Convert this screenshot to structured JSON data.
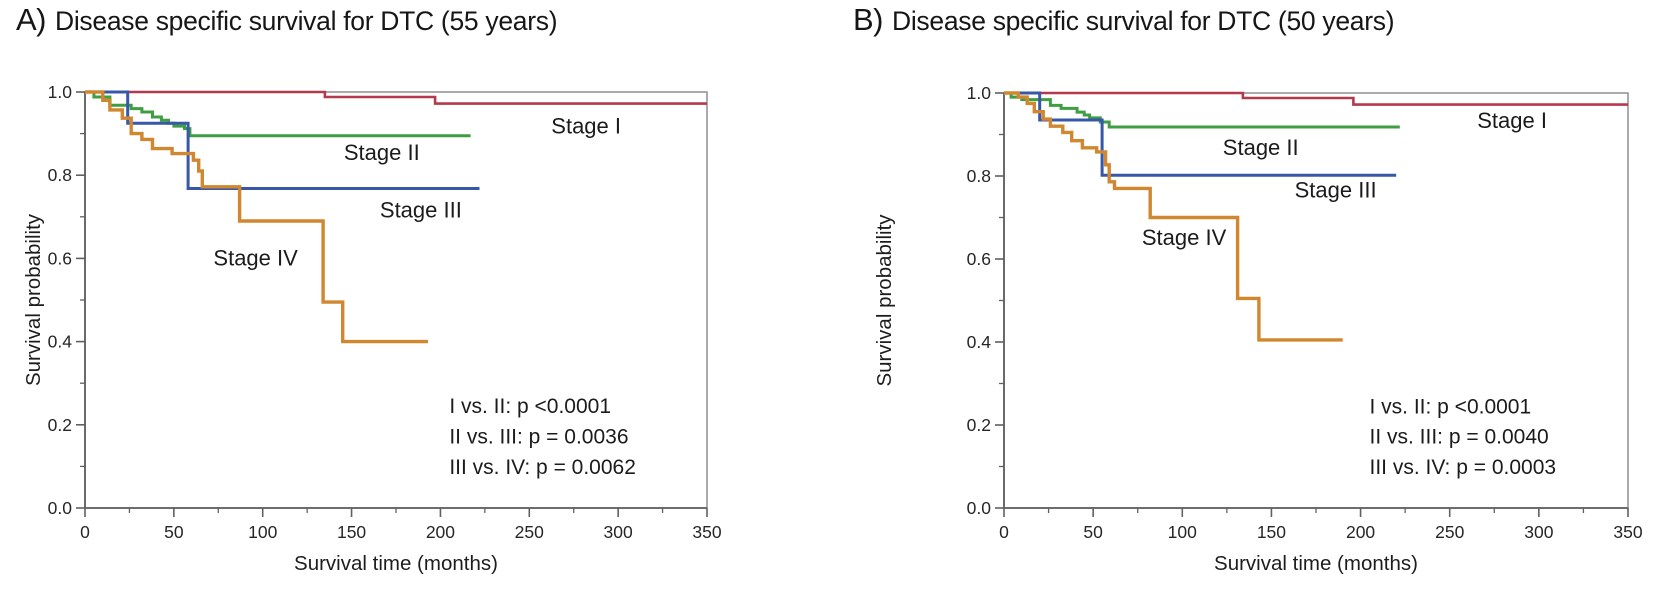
{
  "figure": {
    "background": "#ffffff",
    "text_color": "#1b1b1b",
    "frame_color": "#8f8f8f",
    "axis_color": "#606060"
  },
  "chart_data": [
    {
      "type": "line",
      "subtype": "kaplan-meier-step",
      "panel": "A",
      "title_prefix": "A)",
      "title": "Disease specific survival for DTC (55 years)",
      "xlabel": "Survival time (months)",
      "ylabel": "Survival probability",
      "xlim": [
        0,
        350
      ],
      "ylim": [
        0.0,
        1.0
      ],
      "xticks": [
        0,
        50,
        100,
        150,
        200,
        250,
        300,
        350
      ],
      "xminor": [
        25,
        75,
        125,
        175,
        225,
        275,
        325
      ],
      "yticks": [
        1.0,
        0.8,
        0.6,
        0.4,
        0.2,
        0.0
      ],
      "ytick_labels": [
        "1.0",
        "0.8",
        "0.6",
        "0.4",
        "0.2",
        "0.0"
      ],
      "yminor": [
        0.9,
        0.7,
        0.5,
        0.3,
        0.1
      ],
      "grid": false,
      "legend_position": "inline-curve-labels",
      "series": [
        {
          "name": "Stage I",
          "color": "#b5394d",
          "width": 2.6,
          "points": [
            [
              0,
              1.0
            ],
            [
              135,
              1.0
            ],
            [
              135,
              0.988
            ],
            [
              197,
              0.988
            ],
            [
              197,
              0.972
            ],
            [
              350,
              0.972
            ]
          ]
        },
        {
          "name": "Stage II",
          "color": "#3f9e41",
          "width": 3.0,
          "points": [
            [
              0,
              1.0
            ],
            [
              5,
              1.0
            ],
            [
              5,
              0.988
            ],
            [
              14,
              0.988
            ],
            [
              14,
              0.968
            ],
            [
              26,
              0.968
            ],
            [
              26,
              0.96
            ],
            [
              32,
              0.96
            ],
            [
              32,
              0.952
            ],
            [
              38,
              0.952
            ],
            [
              38,
              0.94
            ],
            [
              43,
              0.94
            ],
            [
              43,
              0.932
            ],
            [
              47,
              0.932
            ],
            [
              47,
              0.925
            ],
            [
              50,
              0.925
            ],
            [
              50,
              0.918
            ],
            [
              56,
              0.918
            ],
            [
              56,
              0.912
            ],
            [
              59,
              0.912
            ],
            [
              59,
              0.895
            ],
            [
              217,
              0.895
            ]
          ]
        },
        {
          "name": "Stage III",
          "color": "#3757a8",
          "width": 3.0,
          "points": [
            [
              0,
              1.0
            ],
            [
              24,
              1.0
            ],
            [
              24,
              0.925
            ],
            [
              58,
              0.925
            ],
            [
              58,
              0.768
            ],
            [
              222,
              0.768
            ]
          ]
        },
        {
          "name": "Stage IV",
          "color": "#d1872f",
          "width": 3.4,
          "points": [
            [
              0,
              1.0
            ],
            [
              10,
              1.0
            ],
            [
              10,
              0.98
            ],
            [
              14,
              0.98
            ],
            [
              14,
              0.957
            ],
            [
              21,
              0.957
            ],
            [
              21,
              0.937
            ],
            [
              26,
              0.937
            ],
            [
              26,
              0.9
            ],
            [
              32,
              0.9
            ],
            [
              32,
              0.886
            ],
            [
              38,
              0.886
            ],
            [
              38,
              0.864
            ],
            [
              49,
              0.864
            ],
            [
              49,
              0.852
            ],
            [
              61,
              0.852
            ],
            [
              61,
              0.836
            ],
            [
              64,
              0.836
            ],
            [
              64,
              0.81
            ],
            [
              66,
              0.81
            ],
            [
              66,
              0.772
            ],
            [
              87,
              0.772
            ],
            [
              87,
              0.69
            ],
            [
              134,
              0.69
            ],
            [
              134,
              0.495
            ],
            [
              145,
              0.495
            ],
            [
              145,
              0.4
            ],
            [
              193,
              0.4
            ]
          ]
        }
      ],
      "stage_labels": [
        {
          "text": "Stage I",
          "x": 282,
          "y": 0.917
        },
        {
          "text": "Stage II",
          "x": 167,
          "y": 0.853
        },
        {
          "text": "Stage III",
          "x": 189,
          "y": 0.715
        },
        {
          "text": "Stage IV",
          "x": 96,
          "y": 0.6
        }
      ],
      "pvalues": {
        "x": 205,
        "lines": [
          {
            "text": "I vs. II: p <0.0001",
            "y": 0.245
          },
          {
            "text": "II vs. III: p = 0.0036",
            "y": 0.172
          },
          {
            "text": "III vs. IV: p = 0.0062",
            "y": 0.099
          }
        ]
      }
    },
    {
      "type": "line",
      "subtype": "kaplan-meier-step",
      "panel": "B",
      "title_prefix": "B)",
      "title": "Disease specific survival for DTC (50 years)",
      "xlabel": "Survival time (months)",
      "ylabel": "Survival probability",
      "xlim": [
        0,
        350
      ],
      "ylim": [
        0.0,
        1.0
      ],
      "xticks": [
        0,
        50,
        100,
        150,
        200,
        250,
        300,
        350
      ],
      "xminor": [
        25,
        75,
        125,
        175,
        225,
        275,
        325
      ],
      "yticks": [
        1.0,
        0.8,
        0.6,
        0.4,
        0.2,
        0.0
      ],
      "ytick_labels": [
        "1.0",
        "0.8",
        "0.6",
        "0.4",
        "0.2",
        "0.0"
      ],
      "yminor": [
        0.9,
        0.7,
        0.5,
        0.3,
        0.1
      ],
      "grid": false,
      "legend_position": "inline-curve-labels",
      "series": [
        {
          "name": "Stage I",
          "color": "#b5394d",
          "width": 2.6,
          "points": [
            [
              0,
              1.0
            ],
            [
              134,
              1.0
            ],
            [
              134,
              0.988
            ],
            [
              196,
              0.988
            ],
            [
              196,
              0.972
            ],
            [
              350,
              0.972
            ]
          ]
        },
        {
          "name": "Stage II",
          "color": "#3f9e41",
          "width": 3.0,
          "points": [
            [
              0,
              1.0
            ],
            [
              4,
              1.0
            ],
            [
              4,
              0.99
            ],
            [
              10,
              0.99
            ],
            [
              10,
              0.984
            ],
            [
              26,
              0.984
            ],
            [
              26,
              0.97
            ],
            [
              32,
              0.97
            ],
            [
              32,
              0.963
            ],
            [
              41,
              0.963
            ],
            [
              41,
              0.954
            ],
            [
              45,
              0.954
            ],
            [
              45,
              0.947
            ],
            [
              48,
              0.947
            ],
            [
              48,
              0.94
            ],
            [
              54,
              0.94
            ],
            [
              54,
              0.93
            ],
            [
              59,
              0.93
            ],
            [
              59,
              0.918
            ],
            [
              222,
              0.918
            ]
          ]
        },
        {
          "name": "Stage III",
          "color": "#3757a8",
          "width": 3.0,
          "points": [
            [
              0,
              1.0
            ],
            [
              20,
              1.0
            ],
            [
              20,
              0.935
            ],
            [
              55,
              0.935
            ],
            [
              55,
              0.802
            ],
            [
              220,
              0.802
            ]
          ]
        },
        {
          "name": "Stage IV",
          "color": "#d1872f",
          "width": 3.4,
          "points": [
            [
              0,
              1.0
            ],
            [
              8,
              1.0
            ],
            [
              8,
              0.99
            ],
            [
              13,
              0.99
            ],
            [
              13,
              0.975
            ],
            [
              17,
              0.975
            ],
            [
              17,
              0.955
            ],
            [
              22,
              0.955
            ],
            [
              22,
              0.937
            ],
            [
              26,
              0.937
            ],
            [
              26,
              0.92
            ],
            [
              33,
              0.92
            ],
            [
              33,
              0.905
            ],
            [
              38,
              0.905
            ],
            [
              38,
              0.885
            ],
            [
              44,
              0.885
            ],
            [
              44,
              0.868
            ],
            [
              52,
              0.868
            ],
            [
              52,
              0.858
            ],
            [
              57,
              0.858
            ],
            [
              57,
              0.827
            ],
            [
              59,
              0.827
            ],
            [
              59,
              0.786
            ],
            [
              62,
              0.786
            ],
            [
              62,
              0.77
            ],
            [
              82,
              0.77
            ],
            [
              82,
              0.7
            ],
            [
              131,
              0.7
            ],
            [
              131,
              0.505
            ],
            [
              143,
              0.505
            ],
            [
              143,
              0.405
            ],
            [
              190,
              0.405
            ]
          ]
        }
      ],
      "stage_labels": [
        {
          "text": "Stage I",
          "x": 285,
          "y": 0.932
        },
        {
          "text": "Stage II",
          "x": 144,
          "y": 0.868
        },
        {
          "text": "Stage III",
          "x": 186,
          "y": 0.765
        },
        {
          "text": "Stage IV",
          "x": 101,
          "y": 0.651
        }
      ],
      "pvalues": {
        "x": 205,
        "lines": [
          {
            "text": "I vs. II: p <0.0001",
            "y": 0.245
          },
          {
            "text": "II vs. III: p = 0.0040",
            "y": 0.172
          },
          {
            "text": "III vs. IV: p = 0.0003",
            "y": 0.099
          }
        ]
      }
    }
  ]
}
